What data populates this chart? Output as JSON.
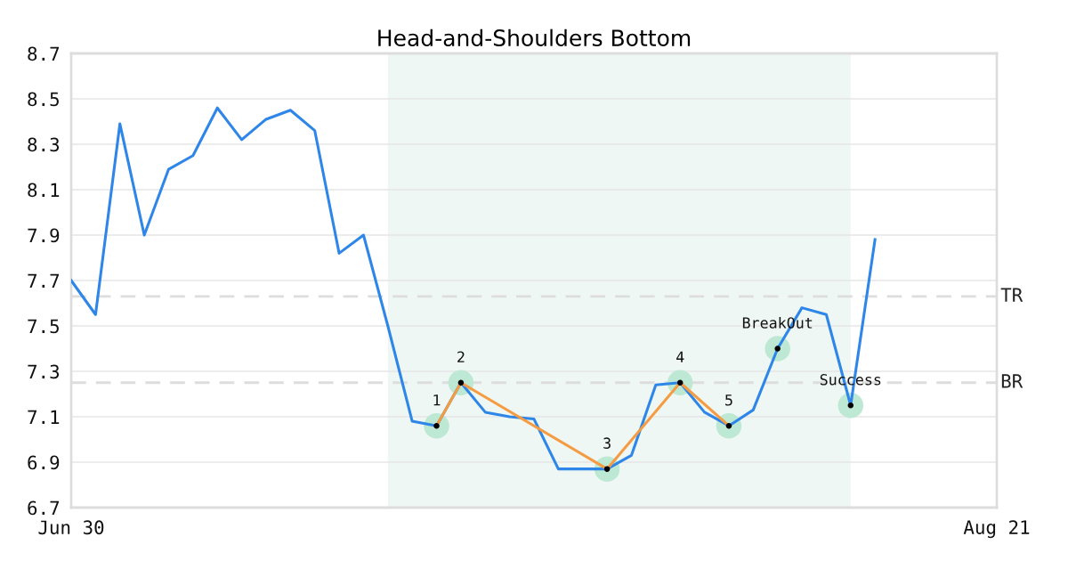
{
  "chart_data": {
    "type": "line",
    "title": "Head-and-Shoulders Bottom",
    "categories": [
      "Jun 30",
      null,
      null,
      null,
      null,
      null,
      null,
      null,
      null,
      null,
      null,
      null,
      null,
      null,
      null,
      null,
      null,
      null,
      null,
      null,
      null,
      null,
      null,
      null,
      null,
      null,
      null,
      null,
      null,
      null,
      null,
      null,
      null,
      null,
      null,
      null,
      null,
      null,
      "Aug 21"
    ],
    "series": [
      {
        "color": "#2e86e8",
        "values": [
          7.7,
          7.55,
          8.39,
          7.9,
          8.19,
          8.25,
          8.46,
          8.32,
          8.41,
          8.45,
          8.36,
          7.82,
          7.9,
          7.5,
          7.08,
          7.06,
          7.25,
          7.12,
          7.1,
          7.09,
          6.87,
          6.87,
          6.87,
          6.93,
          7.24,
          7.25,
          7.12,
          7.06,
          7.13,
          7.4,
          7.58,
          7.55,
          7.15,
          7.88,
          null,
          null,
          null,
          null,
          null
        ]
      },
      {
        "type": "line",
        "color": "#f59b42",
        "values": [
          null,
          null,
          null,
          null,
          null,
          null,
          null,
          null,
          null,
          null,
          null,
          null,
          null,
          null,
          null,
          7.06,
          7.25,
          null,
          null,
          null,
          null,
          null,
          6.87,
          null,
          null,
          7.25,
          null,
          7.06,
          null,
          null,
          null,
          null,
          null,
          null,
          null,
          null,
          null,
          null,
          null
        ]
      },
      {
        "type": "scatter",
        "color": "#000000",
        "values": [
          null,
          null,
          null,
          null,
          null,
          null,
          null,
          null,
          null,
          null,
          null,
          null,
          null,
          null,
          null,
          7.06,
          7.25,
          null,
          null,
          null,
          null,
          null,
          6.87,
          null,
          null,
          7.25,
          null,
          7.06,
          null,
          7.4,
          null,
          null,
          7.15,
          null,
          null,
          null,
          null,
          null,
          null
        ]
      }
    ],
    "annotations": [
      {
        "text": "1",
        "y": 7.06
      },
      {
        "text": "2",
        "y": 7.25
      },
      {
        "text": "3",
        "y": 6.87
      },
      {
        "text": "4",
        "y": 7.25
      },
      {
        "text": "5",
        "y": 7.06
      },
      {
        "text": "BreakOut",
        "y": 7.4
      },
      {
        "text": "Success",
        "y": 7.15
      }
    ],
    "ylim": [
      6.7,
      8.7
    ],
    "yticks": [
      6.7,
      6.9,
      7.1,
      7.3,
      7.5,
      7.7,
      7.9,
      8.1,
      8.3,
      8.5,
      8.7
    ],
    "grid": "y",
    "ref_lines": [
      {
        "axis": "y",
        "value": 7.63,
        "label": "TR",
        "color": "#dddddd",
        "line_style": "dashed"
      },
      {
        "axis": "y",
        "value": 7.25,
        "label": "BR",
        "color": "#dddddd",
        "line_style": "dashed"
      }
    ]
  }
}
